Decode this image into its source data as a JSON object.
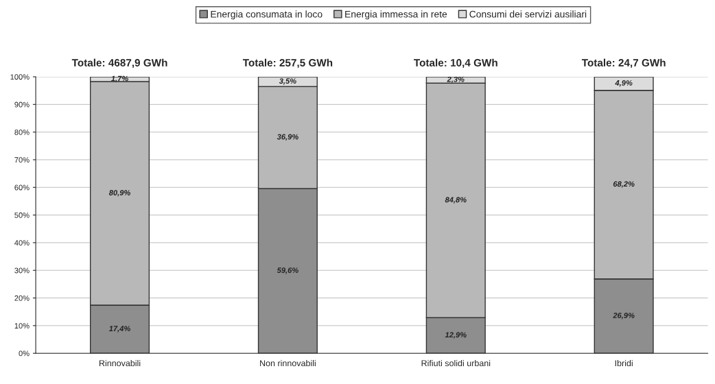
{
  "chart_data": {
    "type": "bar",
    "stacked": true,
    "categories": [
      "Rinnovabili",
      "Non rinnovabili",
      "Rifiuti solidi urbani",
      "Ibridi"
    ],
    "series": [
      {
        "name": "Energia consumata in loco",
        "color": "#8e8e8e",
        "values": [
          17.4,
          59.6,
          12.9,
          26.9
        ],
        "value_labels": [
          "17,4%",
          "59,6%",
          "12,9%",
          "26,9%"
        ]
      },
      {
        "name": "Energia immessa in rete",
        "color": "#b8b8b8",
        "values": [
          80.9,
          36.9,
          84.8,
          68.2
        ],
        "value_labels": [
          "80,9%",
          "36,9%",
          "84,8%",
          "68,2%"
        ]
      },
      {
        "name": "Consumi dei servizi ausiliari",
        "color": "#dcdcdc",
        "values": [
          1.7,
          3.5,
          2.3,
          4.9
        ],
        "value_labels": [
          "1,7%",
          "3,5%",
          "2,3%",
          "4,9%"
        ]
      }
    ],
    "annotations": [
      "Totale: 4687,9 GWh",
      "Totale: 257,5 GWh",
      "Totale: 10,4 GWh",
      "Totale: 24,7 GWh"
    ],
    "ylim": [
      0,
      100
    ],
    "yticks": [
      {
        "value": 0,
        "label": "0%"
      },
      {
        "value": 10,
        "label": "10%"
      },
      {
        "value": 20,
        "label": "20%"
      },
      {
        "value": 30,
        "label": "30%"
      },
      {
        "value": 40,
        "label": "40%"
      },
      {
        "value": 50,
        "label": "50%"
      },
      {
        "value": 60,
        "label": "60%"
      },
      {
        "value": 70,
        "label": "70%"
      },
      {
        "value": 80,
        "label": "80%"
      },
      {
        "value": 90,
        "label": "90%"
      },
      {
        "value": 100,
        "label": "100%"
      }
    ],
    "grid": "y",
    "legend": "top"
  }
}
